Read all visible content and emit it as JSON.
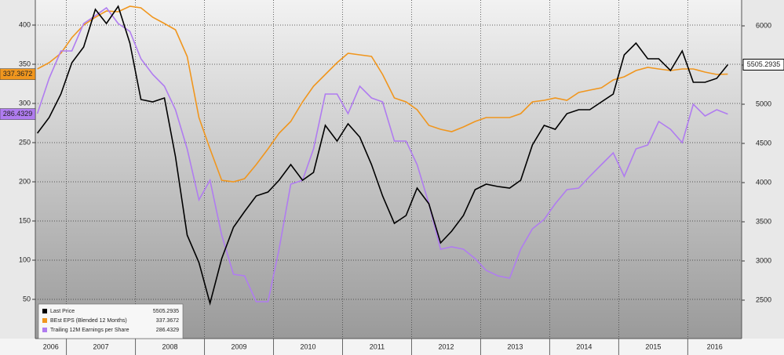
{
  "chart_data": {
    "type": "line",
    "x": [
      2006.58,
      2006.75,
      2006.92,
      2007.08,
      2007.25,
      2007.42,
      2007.58,
      2007.75,
      2007.92,
      2008.08,
      2008.25,
      2008.42,
      2008.58,
      2008.75,
      2008.92,
      2009.08,
      2009.25,
      2009.42,
      2009.58,
      2009.75,
      2009.92,
      2010.08,
      2010.25,
      2010.42,
      2010.58,
      2010.75,
      2010.92,
      2011.08,
      2011.25,
      2011.42,
      2011.58,
      2011.75,
      2011.92,
      2012.08,
      2012.25,
      2012.42,
      2012.58,
      2012.75,
      2012.92,
      2013.08,
      2013.25,
      2013.42,
      2013.58,
      2013.75,
      2013.92,
      2014.08,
      2014.25,
      2014.42,
      2014.58,
      2014.75,
      2014.92,
      2015.08,
      2015.25,
      2015.42,
      2015.58,
      2015.75,
      2015.92,
      2016.08,
      2016.25,
      2016.42,
      2016.58
    ],
    "series": [
      {
        "name": "Last Price",
        "color": "#000000",
        "axis": "y2",
        "values": [
          4630,
          4830,
          5130,
          5530,
          5730,
          6210,
          6030,
          6250,
          5780,
          5060,
          5030,
          5080,
          4330,
          3330,
          2980,
          2460,
          3030,
          3430,
          3630,
          3830,
          3880,
          4030,
          4230,
          4030,
          4130,
          4730,
          4530,
          4750,
          4580,
          4230,
          3830,
          3480,
          3580,
          3930,
          3730,
          3230,
          3380,
          3580,
          3910,
          3980,
          3950,
          3930,
          4030,
          4480,
          4730,
          4680,
          4880,
          4930,
          4930,
          5030,
          5130,
          5630,
          5780,
          5580,
          5580,
          5430,
          5680,
          5280,
          5280,
          5330,
          5505.2935
        ]
      },
      {
        "name": "BEst EPS (Blended 12 Months)",
        "color": "#f0961e",
        "values": [
          344,
          352,
          364,
          384,
          400,
          410,
          418,
          417,
          424,
          422,
          410,
          402,
          394,
          360,
          282,
          242,
          202,
          200,
          204,
          222,
          242,
          262,
          277,
          302,
          322,
          337,
          352,
          364,
          362,
          360,
          337,
          307,
          302,
          292,
          272,
          267,
          264,
          270,
          277,
          282,
          282,
          282,
          287,
          302,
          304,
          307,
          304,
          314,
          317,
          320,
          330,
          334,
          342,
          346,
          344,
          342,
          344,
          344,
          340,
          337,
          337.3672
        ]
      },
      {
        "name": "Trailing 12M Earnings per Share",
        "color": "#b07cf0",
        "values": [
          287,
          332,
          367,
          367,
          402,
          412,
          422,
          402,
          392,
          357,
          337,
          322,
          292,
          242,
          177,
          202,
          132,
          82,
          80,
          47,
          47,
          114,
          197,
          202,
          242,
          312,
          312,
          287,
          322,
          307,
          302,
          252,
          252,
          222,
          172,
          114,
          117,
          114,
          102,
          87,
          80,
          77,
          114,
          140,
          152,
          172,
          190,
          192,
          207,
          222,
          237,
          207,
          242,
          247,
          277,
          267,
          250,
          299,
          284,
          292,
          286.4329
        ]
      }
    ],
    "xlim": [
      2006.55,
      2016.78
    ],
    "xticks": [
      2006,
      2007,
      2008,
      2009,
      2010,
      2011,
      2012,
      2013,
      2014,
      2015,
      2016
    ],
    "ylim": [
      0,
      432
    ],
    "yticks": [
      50,
      100,
      150,
      200,
      250,
      300,
      350,
      400
    ],
    "y2lim": [
      2010,
      6330
    ],
    "y2ticks": [
      2500,
      3000,
      3500,
      4000,
      4500,
      5000,
      5500,
      6000
    ],
    "grid": true,
    "legend": "lower left"
  }
}
